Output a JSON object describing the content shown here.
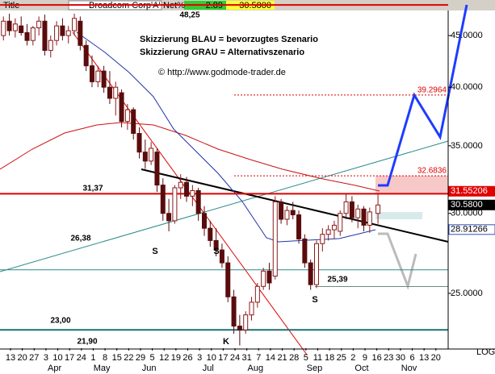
{
  "header": {
    "title": "Title",
    "symbol": "Broadcom Corp'A'",
    "field": "Net%",
    "change": 2.89,
    "last": "30.5800"
  },
  "chart_data": {
    "type": "candlestick",
    "log": true,
    "scale_label": "LOG",
    "xlim": [
      -0.89,
      37.04
    ],
    "ylim": [
      22.06,
      48.8
    ],
    "yticks": [
      {
        "value": 25,
        "label": "25.0000"
      },
      {
        "value": 30,
        "label": "30.0000"
      },
      {
        "value": 35,
        "label": "35.0000"
      },
      {
        "value": 40,
        "label": "40.0000"
      },
      {
        "value": 45,
        "label": "45.0000"
      }
    ],
    "xticks": [
      {
        "value": 0,
        "label": "13"
      },
      {
        "value": 1,
        "label": "20"
      },
      {
        "value": 2,
        "label": "27"
      },
      {
        "value": 3,
        "label": "3"
      },
      {
        "value": 4,
        "label": "10"
      },
      {
        "value": 5,
        "label": "17"
      },
      {
        "value": 6,
        "label": "24"
      },
      {
        "value": 7,
        "label": "1"
      },
      {
        "value": 8,
        "label": "8"
      },
      {
        "value": 9,
        "label": "15"
      },
      {
        "value": 10,
        "label": "22"
      },
      {
        "value": 11,
        "label": "29"
      },
      {
        "value": 12,
        "label": "5"
      },
      {
        "value": 13,
        "label": "12"
      },
      {
        "value": 14,
        "label": "19"
      },
      {
        "value": 15,
        "label": "26"
      },
      {
        "value": 16,
        "label": "3"
      },
      {
        "value": 17,
        "label": "10"
      },
      {
        "value": 18,
        "label": "17"
      },
      {
        "value": 19,
        "label": "24"
      },
      {
        "value": 20,
        "label": "31"
      },
      {
        "value": 21,
        "label": "7"
      },
      {
        "value": 22,
        "label": "14"
      },
      {
        "value": 23,
        "label": "21"
      },
      {
        "value": 24,
        "label": "28"
      },
      {
        "value": 25,
        "label": "5"
      },
      {
        "value": 26,
        "label": "11"
      },
      {
        "value": 27,
        "label": "18"
      },
      {
        "value": 28,
        "label": "25"
      },
      {
        "value": 29,
        "label": "2"
      },
      {
        "value": 30,
        "label": "9"
      },
      {
        "value": 31,
        "label": "16"
      },
      {
        "value": 32,
        "label": "23"
      },
      {
        "value": 33,
        "label": "30"
      },
      {
        "value": 34,
        "label": "6"
      },
      {
        "value": 35,
        "label": "13"
      },
      {
        "value": 36,
        "label": "20"
      }
    ],
    "months": [
      {
        "value": 4,
        "label": "Apr"
      },
      {
        "value": 8,
        "label": "May"
      },
      {
        "value": 12,
        "label": "Jun"
      },
      {
        "value": 17,
        "label": "Jul"
      },
      {
        "value": 21,
        "label": "Aug"
      },
      {
        "value": 26,
        "label": "Sep"
      },
      {
        "value": 30,
        "label": "Oct"
      },
      {
        "value": 34,
        "label": "Nov"
      }
    ],
    "up_color": "#8b1a1a",
    "down_color": "#5a0c0c",
    "x": [
      -0.6,
      -0.1,
      0.4,
      0.9,
      1.4,
      1.9,
      2.4,
      2.9,
      3.4,
      3.9,
      4.4,
      4.9,
      5.4,
      5.9,
      6.4,
      6.9,
      7.4,
      7.9,
      8.4,
      8.9,
      9.4,
      9.9,
      10.4,
      10.9,
      11.4,
      11.9,
      12.4,
      12.9,
      13.4,
      13.9,
      14.4,
      14.9,
      15.4,
      15.9,
      16.4,
      16.9,
      17.4,
      17.9,
      18.4,
      18.9,
      19.4,
      19.9,
      20.4,
      20.9,
      21.4,
      21.9,
      22.4,
      22.9,
      23.4,
      23.9,
      24.4,
      24.9,
      25.4,
      25.9,
      26.4,
      26.9,
      27.4,
      27.9,
      28.4,
      28.9,
      29.4,
      29.9,
      30.4,
      31.1
    ],
    "open": [
      45,
      46.5,
      45.5,
      46,
      45.3,
      44.5,
      45.8,
      46.5,
      43.5,
      44.5,
      46,
      45,
      45.5,
      46.5,
      44,
      42,
      40.5,
      41.5,
      40,
      39,
      39.5,
      37,
      38,
      36,
      34.5,
      33.8,
      34.5,
      32,
      30,
      29.5,
      31.8,
      32.2,
      31.2,
      31.6,
      30,
      29,
      28.2,
      27.6,
      26.8,
      24.8,
      23.2,
      23,
      23.8,
      24.5,
      25.4,
      26.3,
      26,
      30.8,
      29.6,
      30.2,
      29.9,
      28.3,
      26.8,
      25.5,
      28,
      28.6,
      28.9,
      28.8,
      30,
      30.8,
      29.7,
      30.3,
      29.2,
      30
    ],
    "high": [
      47,
      47.3,
      46.8,
      47,
      46.2,
      46,
      47,
      47.2,
      45,
      46.5,
      46.8,
      46,
      47.3,
      47,
      44.5,
      43,
      42,
      42,
      41.5,
      40.5,
      39.8,
      38.5,
      38.2,
      36.5,
      35.5,
      35.3,
      34.8,
      32.5,
      31,
      32,
      32.8,
      32.6,
      32,
      31.8,
      30.5,
      29.5,
      29,
      28,
      27.2,
      25.2,
      23.8,
      24,
      24.8,
      25.6,
      26.5,
      26.8,
      31.2,
      31,
      30.5,
      30.8,
      30.2,
      28.6,
      27,
      28.2,
      29,
      29.2,
      29.5,
      30.2,
      31.4,
      31.2,
      30.6,
      30.5,
      30.4,
      31.4
    ],
    "low": [
      44.5,
      45,
      44.8,
      45,
      44,
      44,
      45,
      43,
      42.8,
      44,
      44.5,
      44.2,
      45,
      43.5,
      41.5,
      40,
      40,
      39.5,
      38.5,
      37.5,
      36.5,
      36.3,
      35.5,
      34,
      33.2,
      33.5,
      31.5,
      29.5,
      28.8,
      29.3,
      31,
      30.8,
      30.5,
      29.5,
      28.5,
      27.8,
      27.2,
      26.5,
      24.5,
      22.8,
      22.2,
      22.8,
      23.5,
      24.2,
      25.2,
      25.2,
      25.8,
      29.3,
      29.2,
      29.6,
      28,
      26.5,
      25.2,
      25.3,
      27.5,
      28.2,
      28.3,
      28.5,
      29.6,
      29.4,
      29,
      28.8,
      28.7,
      29.3
    ],
    "close": [
      46.5,
      45.5,
      46.2,
      45.3,
      44.5,
      45.8,
      46.5,
      43.5,
      44.5,
      46,
      45,
      45.5,
      46.8,
      44,
      42,
      40.5,
      41.5,
      40,
      39,
      40,
      37,
      38,
      36,
      34.5,
      33.8,
      34.8,
      32,
      30,
      29.5,
      31.8,
      32.2,
      31.2,
      31.6,
      30,
      29,
      28.2,
      27.6,
      26.8,
      24.8,
      23.2,
      23,
      23.8,
      24.5,
      25.4,
      26.3,
      25.6,
      30.8,
      29.6,
      30.2,
      29.9,
      28.3,
      26.8,
      25.5,
      28,
      28.6,
      28.9,
      29.2,
      30,
      30.8,
      29.7,
      30.3,
      29.2,
      30.1,
      30.58
    ],
    "levels": [
      {
        "value": 48.25,
        "label": "48,25",
        "color": "#e00000",
        "style": "thick"
      },
      {
        "value": 31.37,
        "label": "31,37",
        "color": "#e00000",
        "style": "thick"
      },
      {
        "value": 26.38,
        "label": "26,38",
        "color": "#2a8a8a",
        "style": "thin"
      },
      {
        "value": 23.0,
        "label": "23,00",
        "color": "#1f6f6f",
        "style": "thick"
      },
      {
        "value": 21.9,
        "label": "21,90",
        "color": "#000000",
        "style": "none"
      },
      {
        "value": 25.39,
        "label": "25,39",
        "color": "#6a8a8a",
        "style": "short"
      }
    ],
    "targets": [
      {
        "value": 39.2964,
        "label": "39.2964"
      },
      {
        "value": 32.6836,
        "label": "32.6836"
      }
    ],
    "target_color": "#e00000",
    "price_markers": [
      {
        "value": 31.55206,
        "label": "31.55206",
        "color": "#e00000"
      },
      {
        "value": 30.58,
        "label": "30.5800",
        "color": "#000000"
      },
      {
        "value": 28.91266,
        "label": "28.91266",
        "color": "#3050c0"
      }
    ],
    "annotations": [
      "S",
      "S",
      "S",
      "K"
    ],
    "notes": [
      "Skizzierung BLAU = bevorzugtes Szenario",
      "Skizzierung GRAU = Alternativszenario",
      "© http://www.godmode-trader.de"
    ]
  }
}
